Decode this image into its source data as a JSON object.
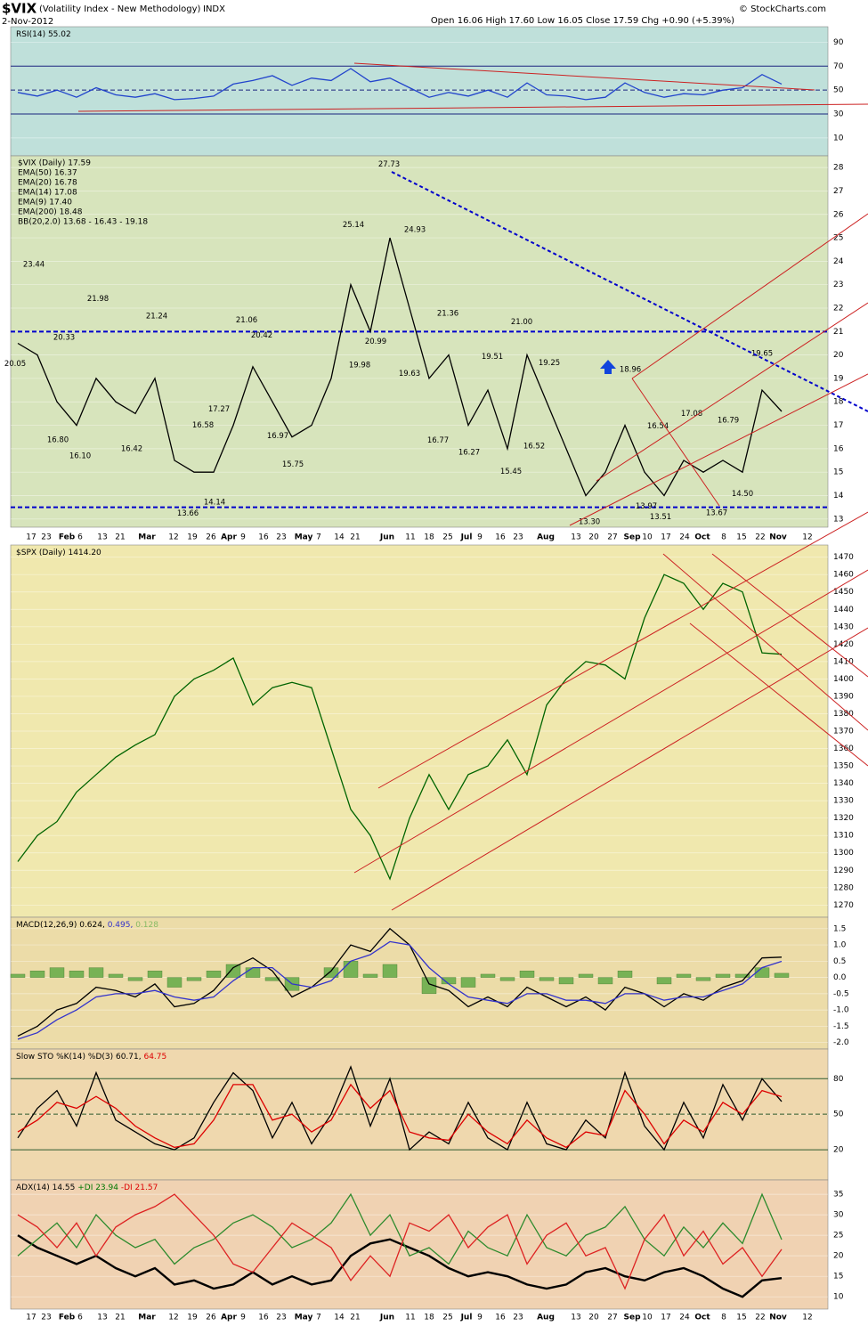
{
  "header": {
    "symbol": "$VIX",
    "name": "(Volatility Index - New Methodology)",
    "exchange": "INDX",
    "date": "2-Nov-2012",
    "quote": "Open 16.06  High 17.60  Low 16.05  Close 17.59  Chg +0.90 (+5.39%)",
    "credit": "© StockCharts.com"
  },
  "x_axis": {
    "labels": [
      "17",
      "23",
      "Feb",
      "6",
      "13",
      "21",
      "Mar",
      "12",
      "19",
      "26",
      "Apr",
      "9",
      "16",
      "23",
      "May",
      "7",
      "14",
      "21",
      "Jun",
      "11",
      "18",
      "25",
      "Jul",
      "9",
      "16",
      "23",
      "Aug",
      "13",
      "20",
      "27",
      "Sep",
      "10",
      "17",
      "24",
      "Oct",
      "8",
      "15",
      "22",
      "Nov",
      "12"
    ]
  },
  "chart_data": [
    {
      "type": "line",
      "title": [
        {
          "text": "RSI(14) 55.02",
          "color": "#000000"
        }
      ],
      "ylim": [
        -5,
        103
      ],
      "yticks": [
        90,
        70,
        50,
        30,
        10
      ],
      "hlines": [
        70,
        50,
        30
      ],
      "series": [
        {
          "color": "#2244cc",
          "values": [
            48,
            45,
            50,
            44,
            52,
            46,
            44,
            47,
            42,
            43,
            45,
            55,
            58,
            62,
            54,
            60,
            58,
            68,
            57,
            60,
            52,
            44,
            48,
            45,
            50,
            44,
            56,
            46,
            45,
            42,
            44,
            56,
            48,
            44,
            47,
            46,
            50,
            52,
            63,
            55.02
          ]
        }
      ]
    },
    {
      "type": "line",
      "legend": [
        {
          "text": "$VIX (Daily) 17.59",
          "color": "#000000"
        },
        {
          "text": "EMA(50) 16.37",
          "color": "#000080"
        },
        {
          "text": "EMA(20) 16.78",
          "color": "#dd0000"
        },
        {
          "text": "EMA(14) 17.08",
          "color": "#007700"
        },
        {
          "text": "EMA(9) 17.40",
          "color": "#cc00cc"
        },
        {
          "text": "EMA(200) 18.48",
          "color": "#9933cc"
        },
        {
          "text": "BB(20,2.0) 13.68 - 16.43 - 19.18",
          "color": "#888888"
        }
      ],
      "ylim": [
        12.65,
        28.5
      ],
      "yticks": [
        13,
        14,
        15,
        16,
        17,
        18,
        19,
        20,
        21,
        22,
        23,
        24,
        25,
        26,
        27,
        28
      ],
      "hlines": [
        21,
        13.5
      ],
      "series": [
        {
          "color": "#000000",
          "values": [
            20.5,
            20,
            18,
            17,
            19,
            18,
            17.5,
            19,
            15.5,
            15,
            15,
            17,
            19.5,
            18,
            16.5,
            17,
            19,
            23,
            21,
            25,
            22,
            19,
            20,
            17,
            18.5,
            16,
            20,
            18,
            16,
            14,
            15,
            17,
            15,
            14,
            15.5,
            15,
            15.5,
            15,
            18.5,
            17.59
          ]
        }
      ],
      "annotations": {
        "values": [
          20.05,
          23.44,
          20.33,
          21.98,
          16.8,
          16.1,
          16.42,
          21.24,
          13.66,
          16.58,
          14.14,
          17.27,
          21.06,
          20.42,
          16.97,
          15.75,
          25.14,
          19.98,
          20.99,
          27.73,
          24.93,
          19.63,
          16.77,
          21.36,
          16.27,
          19.51,
          15.45,
          21,
          16.52,
          19.25,
          13.3,
          18.96,
          16.54,
          13.97,
          13.51,
          17.08,
          13.67,
          16.79,
          14.5,
          19.65
        ],
        "value_labels": [
          "20.05",
          "23.44",
          "20.33",
          "21.98",
          "16.80",
          "16.10",
          "16.42",
          "21.24",
          "13.66",
          "16.58",
          "14.14",
          "17.27",
          "21.06",
          "20.42",
          "16.97",
          "15.75",
          "25.14",
          "19.98",
          "20.99",
          "27.73",
          "24.93",
          "19.63",
          "16.77",
          "21.36",
          "16.27",
          "19.51",
          "15.45",
          "21.00",
          "16.52",
          "19.25",
          "13.30",
          "18.96",
          "16.54",
          "13.97",
          "13.51",
          "17.08",
          "13.67",
          "16.79",
          "14.50",
          "19.65"
        ]
      }
    },
    {
      "type": "line",
      "title": [
        {
          "text": "$SPX (Daily) 1414.20",
          "color": "#000000"
        }
      ],
      "ylim": [
        1263,
        1477
      ],
      "yticks": [
        1270,
        1280,
        1290,
        1300,
        1310,
        1320,
        1330,
        1340,
        1350,
        1360,
        1370,
        1380,
        1390,
        1400,
        1410,
        1420,
        1430,
        1440,
        1450,
        1460,
        1470
      ],
      "series": [
        {
          "color": "#006400",
          "values": [
            1295,
            1310,
            1318,
            1335,
            1345,
            1355,
            1362,
            1368,
            1390,
            1400,
            1405,
            1412,
            1385,
            1395,
            1398,
            1395,
            1360,
            1325,
            1310,
            1285,
            1320,
            1345,
            1325,
            1345,
            1350,
            1365,
            1345,
            1385,
            1400,
            1410,
            1408,
            1400,
            1435,
            1460,
            1455,
            1440,
            1455,
            1450,
            1415,
            1414.2
          ]
        }
      ]
    },
    {
      "type": "line",
      "title": [
        {
          "text": "MACD(12,26,9) 0.624,",
          "color": "#000000"
        },
        {
          "text": " 0.495,",
          "color": "#3333cc"
        },
        {
          "text": " 0.128",
          "color": "#88bb66"
        }
      ],
      "ylim": [
        -2.2,
        1.85
      ],
      "yticks": [
        1.5,
        {
          "value": 1,
          "label": "1.0"
        },
        0.5,
        {
          "value": 0,
          "label": "0.0"
        },
        -0.5,
        {
          "value": -1,
          "label": "-1.0"
        },
        -1.5,
        {
          "value": -2,
          "label": "-2.0"
        }
      ],
      "series": [
        {
          "type": "bar",
          "color": "#77b255",
          "values": [
            0.1,
            0.2,
            0.3,
            0.2,
            0.3,
            0.1,
            -0.1,
            0.2,
            -0.3,
            -0.1,
            0.2,
            0.4,
            0.3,
            -0.1,
            -0.4,
            0,
            0.3,
            0.5,
            0.1,
            0.4,
            0,
            -0.5,
            -0.2,
            -0.3,
            0.1,
            -0.1,
            0.2,
            -0.1,
            -0.2,
            0.1,
            -0.2,
            0.2,
            0,
            -0.2,
            0.1,
            -0.1,
            0.1,
            0.1,
            0.3,
            0.128
          ]
        },
        {
          "color": "#000000",
          "values": [
            -1.8,
            -1.5,
            -1,
            -0.8,
            -0.3,
            -0.4,
            -0.6,
            -0.2,
            -0.9,
            -0.8,
            -0.4,
            0.3,
            0.6,
            0.2,
            -0.6,
            -0.3,
            0.2,
            1,
            0.8,
            1.5,
            1,
            -0.2,
            -0.4,
            -0.9,
            -0.6,
            -0.9,
            -0.3,
            -0.6,
            -0.9,
            -0.6,
            -1,
            -0.3,
            -0.5,
            -0.9,
            -0.5,
            -0.7,
            -0.3,
            -0.1,
            0.6,
            0.624
          ]
        },
        {
          "color": "#3333cc",
          "values": [
            -1.9,
            -1.7,
            -1.3,
            -1,
            -0.6,
            -0.5,
            -0.5,
            -0.4,
            -0.6,
            -0.7,
            -0.6,
            -0.1,
            0.3,
            0.3,
            -0.2,
            -0.3,
            -0.1,
            0.5,
            0.7,
            1.1,
            1,
            0.3,
            -0.2,
            -0.6,
            -0.7,
            -0.8,
            -0.5,
            -0.5,
            -0.7,
            -0.7,
            -0.8,
            -0.5,
            -0.5,
            -0.7,
            -0.6,
            -0.6,
            -0.4,
            -0.2,
            0.3,
            0.495
          ]
        }
      ]
    },
    {
      "type": "line",
      "title": [
        {
          "text": "Slow STO %K(14) %D(3) 60.71,",
          "color": "#000000"
        },
        {
          "text": " 64.75",
          "color": "#dd0000"
        }
      ],
      "ylim": [
        -5.5,
        105
      ],
      "yticks": [
        80,
        50,
        20
      ],
      "hlines": [
        80,
        50,
        20
      ],
      "series": [
        {
          "color": "#000000",
          "values": [
            30,
            55,
            70,
            40,
            85,
            45,
            35,
            25,
            20,
            30,
            60,
            85,
            70,
            30,
            60,
            25,
            50,
            90,
            40,
            80,
            20,
            35,
            25,
            60,
            30,
            20,
            60,
            25,
            20,
            45,
            30,
            85,
            40,
            20,
            60,
            30,
            75,
            45,
            80,
            60.71
          ]
        },
        {
          "color": "#dd0000",
          "values": [
            35,
            45,
            60,
            55,
            65,
            55,
            40,
            30,
            22,
            25,
            45,
            75,
            75,
            45,
            50,
            35,
            45,
            75,
            55,
            70,
            35,
            30,
            28,
            50,
            35,
            25,
            45,
            30,
            22,
            35,
            32,
            70,
            50,
            25,
            45,
            35,
            60,
            50,
            70,
            64.75
          ]
        }
      ]
    },
    {
      "type": "line",
      "title": [
        {
          "text": "ADX(14) 14.55",
          "color": "#000000"
        },
        {
          "text": " +DI 23.94",
          "color": "#007700"
        },
        {
          "text": " -DI 21.57",
          "color": "#dd0000"
        }
      ],
      "ylim": [
        7,
        38.5
      ],
      "yticks": [
        35,
        30,
        25,
        20,
        15,
        10
      ],
      "series": [
        {
          "color": "#000000",
          "values": [
            25,
            22,
            20,
            18,
            20,
            17,
            15,
            17,
            13,
            14,
            12,
            13,
            16,
            13,
            15,
            13,
            14,
            20,
            23,
            24,
            22,
            20,
            17,
            15,
            16,
            15,
            13,
            12,
            13,
            16,
            17,
            15,
            14,
            16,
            17,
            15,
            12,
            10,
            14,
            14.55
          ]
        },
        {
          "color": "#2e8b2e",
          "values": [
            20,
            24,
            28,
            22,
            30,
            25,
            22,
            24,
            18,
            22,
            24,
            28,
            30,
            27,
            22,
            24,
            28,
            35,
            25,
            30,
            20,
            22,
            18,
            26,
            22,
            20,
            30,
            22,
            20,
            25,
            27,
            32,
            24,
            20,
            27,
            22,
            28,
            23,
            35,
            23.94
          ]
        },
        {
          "color": "#dd2222",
          "values": [
            30,
            27,
            22,
            28,
            20,
            27,
            30,
            32,
            35,
            30,
            25,
            18,
            16,
            22,
            28,
            25,
            22,
            14,
            20,
            15,
            28,
            26,
            30,
            22,
            27,
            30,
            18,
            25,
            28,
            20,
            22,
            12,
            24,
            30,
            20,
            26,
            18,
            22,
            15,
            21.57
          ]
        }
      ]
    }
  ]
}
